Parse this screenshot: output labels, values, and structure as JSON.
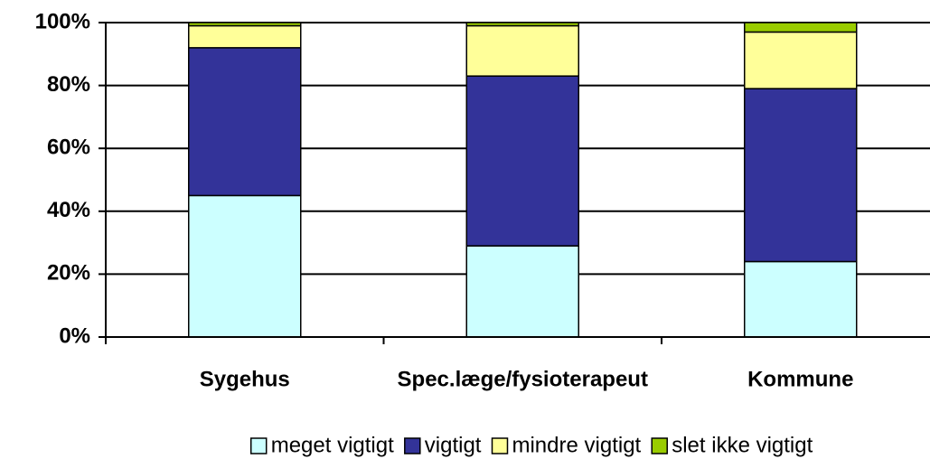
{
  "chart_data": {
    "type": "stacked_bar",
    "categories": [
      "Sygehus",
      "Spec.læge/fysioterapeut",
      "Kommune"
    ],
    "series": [
      {
        "name": "meget vigtigt",
        "color": "#ccffff",
        "values": [
          45,
          29,
          24
        ]
      },
      {
        "name": "vigtigt",
        "color": "#333399",
        "values": [
          47,
          54,
          55
        ]
      },
      {
        "name": "mindre vigtigt",
        "color": "#ffff99",
        "values": [
          7,
          16,
          18
        ]
      },
      {
        "name": "slet ikke vigtigt",
        "color": "#99cc00",
        "values": [
          1,
          1,
          3
        ]
      }
    ],
    "ylim": [
      0,
      100
    ],
    "yticks": [
      {
        "value": 0,
        "label": "0%"
      },
      {
        "value": 20,
        "label": "20%"
      },
      {
        "value": 40,
        "label": "40%"
      },
      {
        "value": 60,
        "label": "60%"
      },
      {
        "value": 80,
        "label": "80%"
      },
      {
        "value": 100,
        "label": "100%"
      }
    ],
    "grid": true,
    "legend": "bottom"
  }
}
